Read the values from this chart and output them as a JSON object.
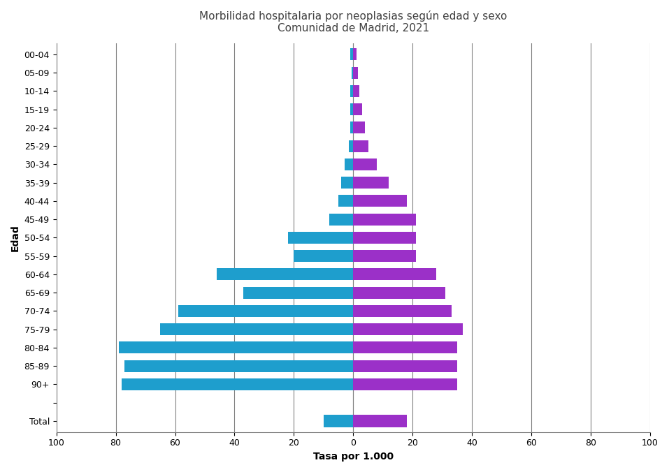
{
  "title_line1": "Morbilidad hospitalaria por neoplasias según edad y sexo",
  "title_line2": "Comunidad de Madrid, 2021",
  "xlabel": "Tasa por 1.000",
  "ylabel": "Edad",
  "age_groups": [
    "00-04",
    "05-09",
    "10-14",
    "15-19",
    "20-24",
    "25-29",
    "30-34",
    "35-39",
    "40-44",
    "45-49",
    "50-54",
    "55-59",
    "60-64",
    "65-69",
    "70-74",
    "75-79",
    "80-84",
    "85-89",
    "90+",
    "",
    "Total"
  ],
  "males": [
    1.0,
    0.5,
    1.0,
    1.0,
    1.0,
    1.5,
    3.0,
    4.0,
    5.0,
    8.0,
    22.0,
    20.0,
    46.0,
    37.0,
    59.0,
    65.0,
    79.0,
    77.0,
    78.0,
    0,
    10.0
  ],
  "females": [
    1.0,
    1.5,
    2.0,
    3.0,
    4.0,
    5.0,
    8.0,
    12.0,
    18.0,
    21.0,
    21.0,
    21.0,
    28.0,
    31.0,
    33.0,
    37.0,
    35.0,
    35.0,
    35.0,
    0,
    18.0
  ],
  "male_color": "#1E9ECD",
  "female_color": "#9B30C8",
  "bg_color": "#FFFFFF",
  "xlim": [
    -100,
    100
  ],
  "xticks": [
    -100,
    -80,
    -60,
    -40,
    -20,
    0,
    20,
    40,
    60,
    80,
    100
  ],
  "xticklabels": [
    "100",
    "80",
    "60",
    "40",
    "20",
    "0",
    "20",
    "40",
    "60",
    "80",
    "100"
  ],
  "grid_color": "#808080",
  "title_color": "#404040",
  "bar_height": 0.65
}
